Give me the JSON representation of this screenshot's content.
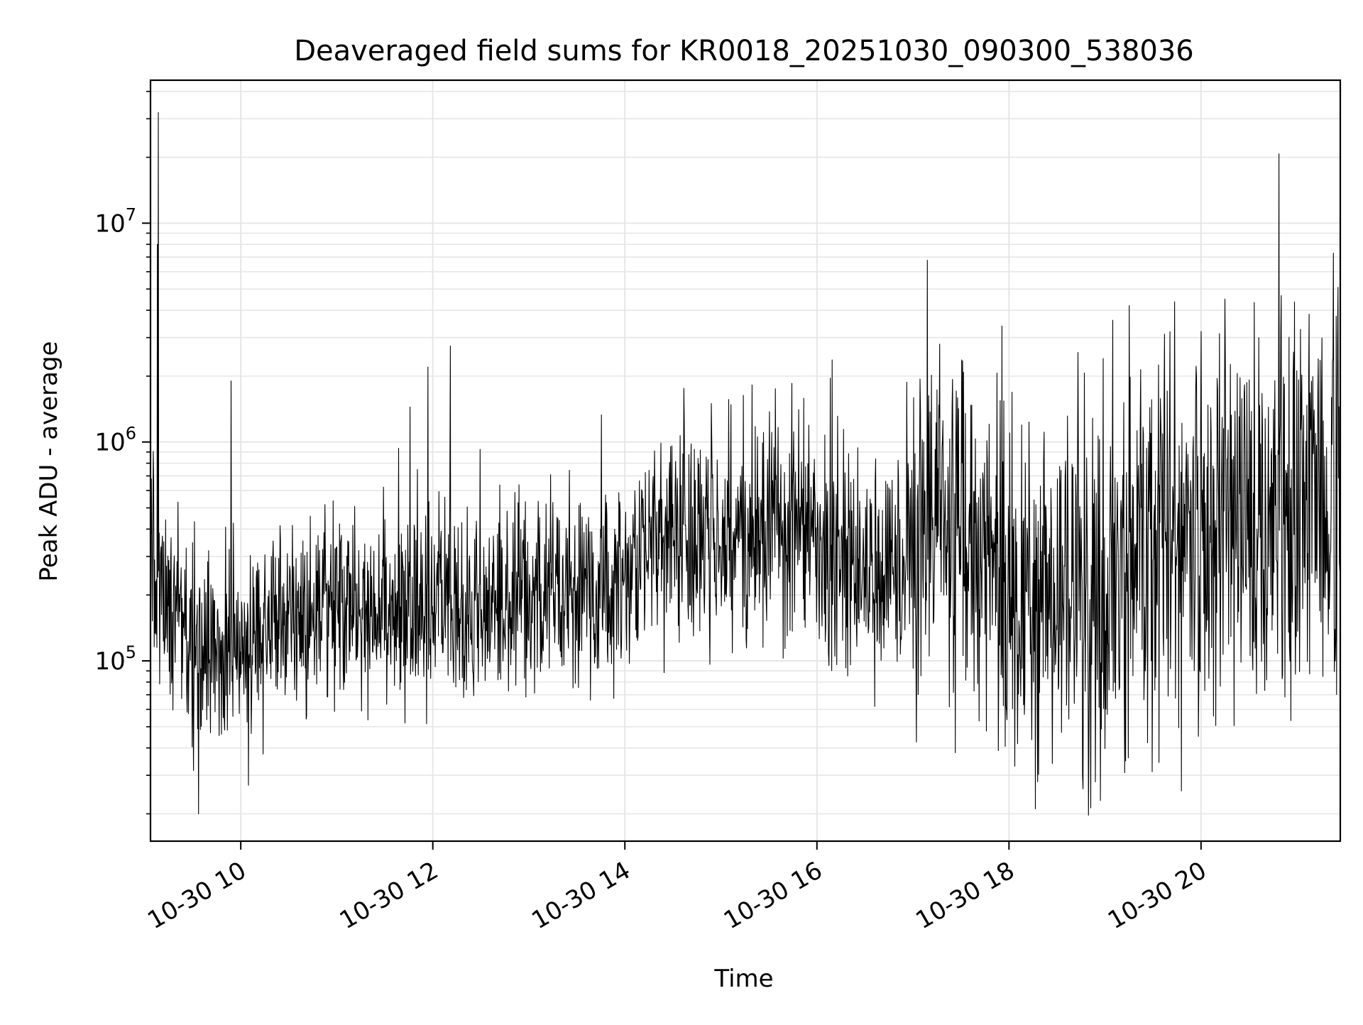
{
  "chart_data": {
    "type": "line",
    "title": "Deaveraged field sums for KR0018_20251030_090300_538036",
    "xlabel": "Time",
    "ylabel": "Peak ADU - average",
    "yscale": "log",
    "grid": true,
    "xlim_hours": [
      9.06,
      21.45
    ],
    "ylim": [
      15000,
      45000000
    ],
    "x_ticks": [
      {
        "value": 10,
        "label": "10-30 10"
      },
      {
        "value": 12,
        "label": "10-30 12"
      },
      {
        "value": 14,
        "label": "10-30 14"
      },
      {
        "value": 16,
        "label": "10-30 16"
      },
      {
        "value": 18,
        "label": "10-30 18"
      },
      {
        "value": 20,
        "label": "10-30 20"
      }
    ],
    "y_ticks": [
      {
        "value": 100000,
        "base": "10",
        "exp": "5"
      },
      {
        "value": 1000000,
        "base": "10",
        "exp": "6"
      },
      {
        "value": 10000000,
        "base": "10",
        "exp": "7"
      }
    ],
    "trend": [
      {
        "x": 9.06,
        "y": 350000
      },
      {
        "x": 9.2,
        "y": 180000
      },
      {
        "x": 9.5,
        "y": 120000
      },
      {
        "x": 9.8,
        "y": 100000
      },
      {
        "x": 10.1,
        "y": 120000
      },
      {
        "x": 10.5,
        "y": 170000
      },
      {
        "x": 11.0,
        "y": 180000
      },
      {
        "x": 12.0,
        "y": 190000
      },
      {
        "x": 12.5,
        "y": 170000
      },
      {
        "x": 13.0,
        "y": 190000
      },
      {
        "x": 13.5,
        "y": 210000
      },
      {
        "x": 14.0,
        "y": 230000
      },
      {
        "x": 14.3,
        "y": 330000
      },
      {
        "x": 15.0,
        "y": 420000
      },
      {
        "x": 15.5,
        "y": 440000
      },
      {
        "x": 16.0,
        "y": 380000
      },
      {
        "x": 16.3,
        "y": 250000
      },
      {
        "x": 17.0,
        "y": 300000
      },
      {
        "x": 17.3,
        "y": 420000
      },
      {
        "x": 17.8,
        "y": 260000
      },
      {
        "x": 18.2,
        "y": 140000
      },
      {
        "x": 18.6,
        "y": 200000
      },
      {
        "x": 19.0,
        "y": 220000
      },
      {
        "x": 19.5,
        "y": 320000
      },
      {
        "x": 20.0,
        "y": 330000
      },
      {
        "x": 20.5,
        "y": 400000
      },
      {
        "x": 21.0,
        "y": 480000
      },
      {
        "x": 21.45,
        "y": 550000
      }
    ],
    "spikes": [
      {
        "x": 9.14,
        "y": 32000000
      },
      {
        "x": 9.13,
        "y": 8000000
      },
      {
        "x": 9.9,
        "y": 1900000
      },
      {
        "x": 9.56,
        "y": 20000
      },
      {
        "x": 10.08,
        "y": 27000
      },
      {
        "x": 11.95,
        "y": 2200000
      },
      {
        "x": 14.9,
        "y": 1500000
      },
      {
        "x": 17.28,
        "y": 2800000
      },
      {
        "x": 17.44,
        "y": 38000
      },
      {
        "x": 18.3,
        "y": 28000
      },
      {
        "x": 18.95,
        "y": 23000
      },
      {
        "x": 19.08,
        "y": 3600000
      },
      {
        "x": 19.25,
        "y": 4200000
      },
      {
        "x": 20.0,
        "y": 3200000
      },
      {
        "x": 20.25,
        "y": 4500000
      },
      {
        "x": 20.6,
        "y": 3000000
      },
      {
        "x": 21.38,
        "y": 7300000
      }
    ],
    "line_color": "#000000",
    "grid_color": "#e6e6e6"
  }
}
